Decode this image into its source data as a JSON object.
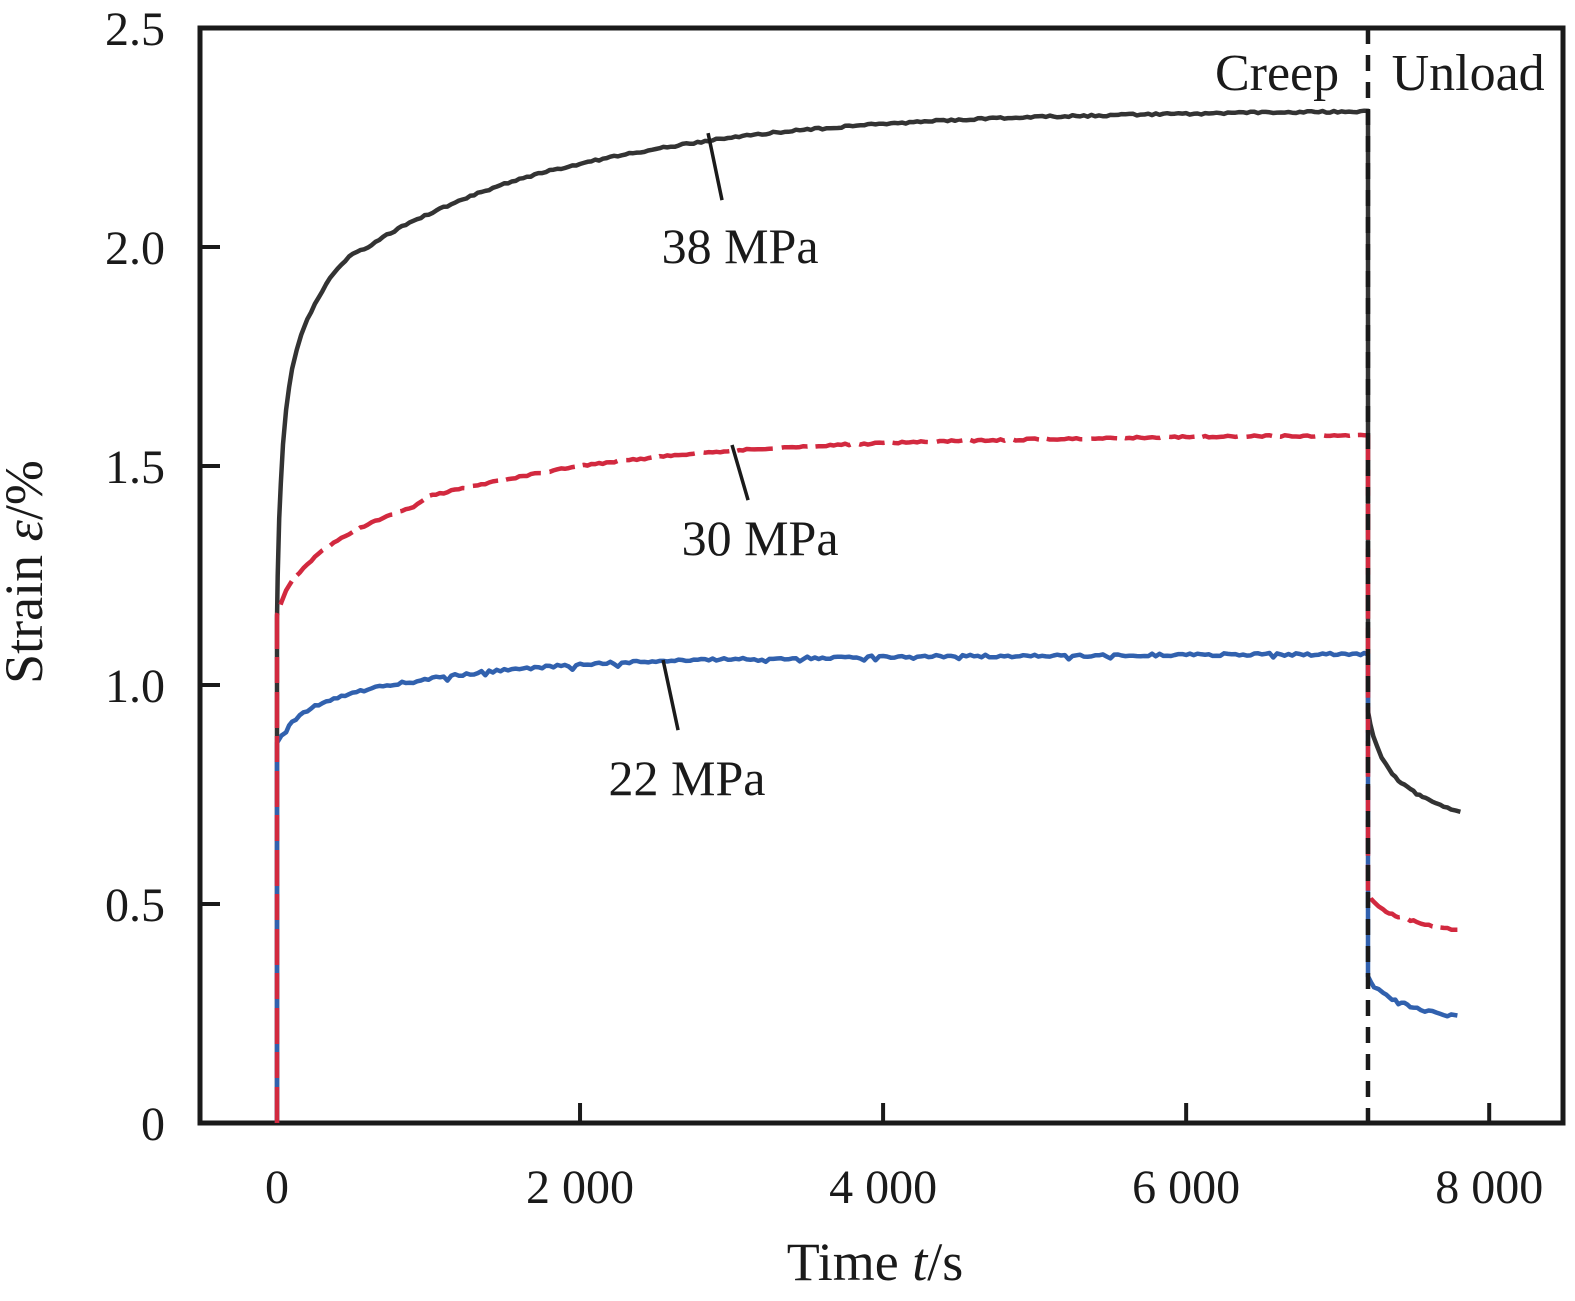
{
  "chart_data": {
    "type": "line",
    "title": "",
    "xlabel": "Time t/s",
    "xlabel_parts": [
      {
        "text": "Time ",
        "italic": false
      },
      {
        "text": "t",
        "italic": true
      },
      {
        "text": "/s",
        "italic": false
      }
    ],
    "ylabel": "Strain ε/%",
    "ylabel_parts": [
      {
        "text": "Strain ",
        "italic": false
      },
      {
        "text": "ε",
        "italic": true
      },
      {
        "text": "/%",
        "italic": false
      }
    ],
    "xlim": [
      -508,
      8487
    ],
    "ylim": [
      0,
      2.5
    ],
    "x_ticks": [
      0,
      2000,
      4000,
      6000,
      8000
    ],
    "x_tick_labels": [
      "0",
      "2 000",
      "4 000",
      "6 000",
      "8 000"
    ],
    "y_ticks": [
      0,
      0.5,
      1.0,
      1.5,
      2.0,
      2.5
    ],
    "y_tick_labels": [
      "0",
      "0.5",
      "1.0",
      "1.5",
      "2.0",
      "2.5"
    ],
    "grid": false,
    "legend": "none (inline curve labels)",
    "phases": {
      "divider_t": 7200,
      "divider_style": "dashed-black-vertical",
      "labels": [
        {
          "text": "Creep",
          "t": 6600,
          "strain": 2.4
        },
        {
          "text": "Unload",
          "t": 7861,
          "strain": 2.4
        }
      ]
    },
    "annotations": [
      {
        "text": "38 MPa",
        "label_t": 3056,
        "label_strain": 2.004,
        "leader_line": [
          [
            2845,
            2.26
          ],
          [
            2937,
            2.107
          ]
        ]
      },
      {
        "text": "30 MPa",
        "label_t": 3188,
        "label_strain": 1.338,
        "leader_line": [
          [
            3003,
            1.548
          ],
          [
            3109,
            1.422
          ]
        ]
      },
      {
        "text": "22 MPa",
        "label_t": 2706,
        "label_strain": 0.79,
        "leader_line": [
          [
            2548,
            1.057
          ],
          [
            2647,
            0.897
          ]
        ]
      }
    ],
    "series": [
      {
        "name": "38 MPa",
        "stress_mpa": 38,
        "color": "#333333",
        "line_style": "solid",
        "noise_amp": 1.0,
        "seed": 11,
        "creep_points": [
          [
            0,
            0
          ],
          [
            0,
            1.15
          ],
          [
            5,
            1.25
          ],
          [
            15,
            1.38
          ],
          [
            25,
            1.46
          ],
          [
            40,
            1.55
          ],
          [
            60,
            1.63
          ],
          [
            80,
            1.68
          ],
          [
            100,
            1.72
          ],
          [
            130,
            1.765
          ],
          [
            160,
            1.8
          ],
          [
            200,
            1.835
          ],
          [
            250,
            1.87
          ],
          [
            300,
            1.9
          ],
          [
            350,
            1.928
          ],
          [
            400,
            1.95
          ],
          [
            450,
            1.968
          ],
          [
            500,
            1.985
          ],
          [
            600,
            2.0
          ],
          [
            700,
            2.022
          ],
          [
            800,
            2.042
          ],
          [
            900,
            2.06
          ],
          [
            1000,
            2.075
          ],
          [
            1200,
            2.105
          ],
          [
            1400,
            2.132
          ],
          [
            1600,
            2.155
          ],
          [
            1800,
            2.174
          ],
          [
            2000,
            2.19
          ],
          [
            2250,
            2.208
          ],
          [
            2500,
            2.224
          ],
          [
            2750,
            2.238
          ],
          [
            3000,
            2.25
          ],
          [
            3250,
            2.26
          ],
          [
            3500,
            2.268
          ],
          [
            3750,
            2.275
          ],
          [
            4000,
            2.281
          ],
          [
            4250,
            2.286
          ],
          [
            4500,
            2.29
          ],
          [
            4750,
            2.294
          ],
          [
            5000,
            2.297
          ],
          [
            5250,
            2.299
          ],
          [
            5500,
            2.301
          ],
          [
            5750,
            2.303
          ],
          [
            6000,
            2.304
          ],
          [
            6250,
            2.306
          ],
          [
            6500,
            2.307
          ],
          [
            6750,
            2.308
          ],
          [
            7000,
            2.309
          ],
          [
            7200,
            2.31
          ]
        ],
        "unload_points": [
          [
            7200,
            2.31
          ],
          [
            7200,
            0.94
          ],
          [
            7215,
            0.912
          ],
          [
            7235,
            0.884
          ],
          [
            7260,
            0.858
          ],
          [
            7290,
            0.835
          ],
          [
            7320,
            0.817
          ],
          [
            7360,
            0.798
          ],
          [
            7400,
            0.783
          ],
          [
            7440,
            0.771
          ],
          [
            7480,
            0.761
          ],
          [
            7520,
            0.752
          ],
          [
            7560,
            0.745
          ],
          [
            7600,
            0.738
          ],
          [
            7650,
            0.731
          ],
          [
            7700,
            0.724
          ],
          [
            7750,
            0.717
          ],
          [
            7810,
            0.71
          ]
        ]
      },
      {
        "name": "22 MPa",
        "stress_mpa": 22,
        "color": "#3161ae",
        "line_style": "solid",
        "noise_amp": 1.4,
        "seed": 33,
        "creep_points": [
          [
            0,
            0
          ],
          [
            0,
            0.868
          ],
          [
            30,
            0.885
          ],
          [
            60,
            0.9
          ],
          [
            100,
            0.915
          ],
          [
            150,
            0.93
          ],
          [
            200,
            0.942
          ],
          [
            300,
            0.96
          ],
          [
            400,
            0.972
          ],
          [
            500,
            0.982
          ],
          [
            600,
            0.99
          ],
          [
            700,
            0.997
          ],
          [
            800,
            1.003
          ],
          [
            900,
            1.009
          ],
          [
            1000,
            1.014
          ],
          [
            1200,
            1.023
          ],
          [
            1400,
            1.031
          ],
          [
            1600,
            1.037
          ],
          [
            1800,
            1.042
          ],
          [
            2000,
            1.046
          ],
          [
            2250,
            1.051
          ],
          [
            2500,
            1.054
          ],
          [
            2750,
            1.057
          ],
          [
            3000,
            1.059
          ],
          [
            3500,
            1.062
          ],
          [
            4000,
            1.064
          ],
          [
            4500,
            1.066
          ],
          [
            5000,
            1.067
          ],
          [
            5500,
            1.068
          ],
          [
            6000,
            1.069
          ],
          [
            6500,
            1.07
          ],
          [
            7000,
            1.07
          ],
          [
            7200,
            1.071
          ]
        ],
        "unload_points": [
          [
            7200,
            1.071
          ],
          [
            7200,
            0.335
          ],
          [
            7220,
            0.322
          ],
          [
            7240,
            0.313
          ],
          [
            7270,
            0.303
          ],
          [
            7300,
            0.295
          ],
          [
            7340,
            0.287
          ],
          [
            7380,
            0.28
          ],
          [
            7420,
            0.274
          ],
          [
            7460,
            0.269
          ],
          [
            7500,
            0.264
          ],
          [
            7550,
            0.259
          ],
          [
            7600,
            0.255
          ],
          [
            7650,
            0.251
          ],
          [
            7700,
            0.248
          ],
          [
            7750,
            0.245
          ],
          [
            7790,
            0.243
          ]
        ]
      },
      {
        "name": "30 MPa",
        "stress_mpa": 30,
        "color": "#d2293f",
        "line_style": "dashed",
        "dash_pattern": "36 9 26 8",
        "noise_amp": 0.9,
        "seed": 22,
        "creep_points": [
          [
            0,
            0
          ],
          [
            0,
            1.16
          ],
          [
            30,
            1.19
          ],
          [
            60,
            1.215
          ],
          [
            100,
            1.237
          ],
          [
            150,
            1.258
          ],
          [
            200,
            1.276
          ],
          [
            300,
            1.306
          ],
          [
            400,
            1.33
          ],
          [
            500,
            1.35
          ],
          [
            600,
            1.366
          ],
          [
            700,
            1.381
          ],
          [
            800,
            1.394
          ],
          [
            900,
            1.405
          ],
          [
            1000,
            1.43
          ],
          [
            1200,
            1.447
          ],
          [
            1400,
            1.462
          ],
          [
            1600,
            1.475
          ],
          [
            1800,
            1.488
          ],
          [
            2000,
            1.5
          ],
          [
            2250,
            1.511
          ],
          [
            2500,
            1.52
          ],
          [
            2750,
            1.528
          ],
          [
            3000,
            1.535
          ],
          [
            3250,
            1.54
          ],
          [
            3500,
            1.545
          ],
          [
            3750,
            1.549
          ],
          [
            4000,
            1.552
          ],
          [
            4500,
            1.557
          ],
          [
            5000,
            1.561
          ],
          [
            5500,
            1.564
          ],
          [
            6000,
            1.566
          ],
          [
            6500,
            1.568
          ],
          [
            7000,
            1.569
          ],
          [
            7200,
            1.57
          ]
        ],
        "unload_points": [
          [
            7200,
            1.57
          ],
          [
            7200,
            0.525
          ],
          [
            7220,
            0.512
          ],
          [
            7240,
            0.503
          ],
          [
            7270,
            0.494
          ],
          [
            7300,
            0.487
          ],
          [
            7340,
            0.48
          ],
          [
            7380,
            0.474
          ],
          [
            7420,
            0.469
          ],
          [
            7460,
            0.465
          ],
          [
            7500,
            0.461
          ],
          [
            7550,
            0.456
          ],
          [
            7600,
            0.452
          ],
          [
            7650,
            0.449
          ],
          [
            7700,
            0.446
          ],
          [
            7750,
            0.443
          ],
          [
            7790,
            0.441
          ]
        ]
      }
    ],
    "colors": {
      "axis": "#1a1a1a",
      "text": "#1a1a1a",
      "divider": "#1a1a1a",
      "background": "#ffffff"
    }
  }
}
